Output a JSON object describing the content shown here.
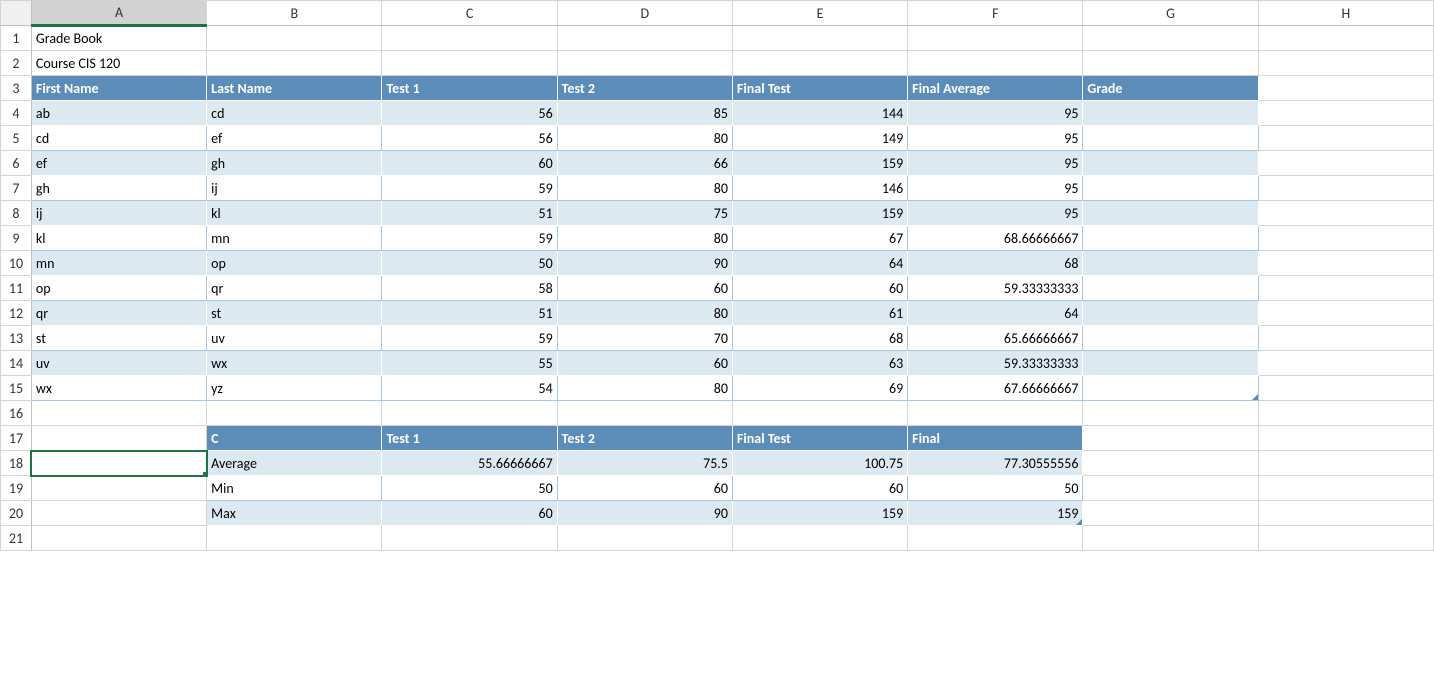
{
  "colors": {
    "header_bg": "#5b8db8",
    "header_fg": "#ffffff",
    "band_even": "#dce9f1",
    "band_odd": "#ffffff",
    "grid": "#d4d4d4",
    "selection": "#217346"
  },
  "columns": [
    "A",
    "B",
    "C",
    "D",
    "E",
    "F",
    "G",
    "H"
  ],
  "row_count": 21,
  "selected_cell": "A18",
  "title1": "Grade Book",
  "title2": "Course CIS 120",
  "main_headers": [
    "First Name",
    "Last Name",
    "Test 1",
    "Test 2",
    "Final Test",
    "Final Average",
    "Grade"
  ],
  "students": [
    {
      "fn": "ab",
      "ln": "cd",
      "t1": "56",
      "t2": "85",
      "ft": "144",
      "fa": "95",
      "g": ""
    },
    {
      "fn": "cd",
      "ln": "ef",
      "t1": "56",
      "t2": "80",
      "ft": "149",
      "fa": "95",
      "g": ""
    },
    {
      "fn": "ef",
      "ln": "gh",
      "t1": "60",
      "t2": "66",
      "ft": "159",
      "fa": "95",
      "g": ""
    },
    {
      "fn": "gh",
      "ln": "ij",
      "t1": "59",
      "t2": "80",
      "ft": "146",
      "fa": "95",
      "g": ""
    },
    {
      "fn": "ij",
      "ln": "kl",
      "t1": "51",
      "t2": "75",
      "ft": "159",
      "fa": "95",
      "g": ""
    },
    {
      "fn": "kl",
      "ln": "mn",
      "t1": "59",
      "t2": "80",
      "ft": "67",
      "fa": "68.66666667",
      "g": ""
    },
    {
      "fn": "mn",
      "ln": "op",
      "t1": "50",
      "t2": "90",
      "ft": "64",
      "fa": "68",
      "g": ""
    },
    {
      "fn": "op",
      "ln": "qr",
      "t1": "58",
      "t2": "60",
      "ft": "60",
      "fa": "59.33333333",
      "g": ""
    },
    {
      "fn": "qr",
      "ln": "st",
      "t1": "51",
      "t2": "80",
      "ft": "61",
      "fa": "64",
      "g": ""
    },
    {
      "fn": "st",
      "ln": "uv",
      "t1": "59",
      "t2": "70",
      "ft": "68",
      "fa": "65.66666667",
      "g": ""
    },
    {
      "fn": "uv",
      "ln": "wx",
      "t1": "55",
      "t2": "60",
      "ft": "63",
      "fa": "59.33333333",
      "g": ""
    },
    {
      "fn": "wx",
      "ln": "yz",
      "t1": "54",
      "t2": "80",
      "ft": "69",
      "fa": "67.66666667",
      "g": ""
    }
  ],
  "stats_headers": [
    "C",
    "Test 1",
    "Test 2",
    "Final Test",
    "Final"
  ],
  "stats_rows": [
    {
      "label": "Average",
      "t1": "55.66666667",
      "t2": "75.5",
      "ft": "100.75",
      "fi": "77.30555556"
    },
    {
      "label": "Min",
      "t1": "50",
      "t2": "60",
      "ft": "60",
      "fi": "50"
    },
    {
      "label": "Max",
      "t1": "60",
      "t2": "90",
      "ft": "159",
      "fi": "159"
    }
  ]
}
